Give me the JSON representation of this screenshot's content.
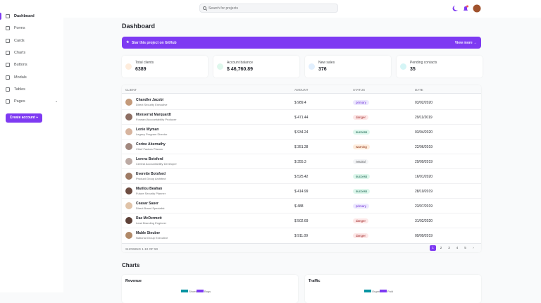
{
  "sidebar": {
    "items": [
      "Dashboard",
      "Forms",
      "Cards",
      "Charts",
      "Buttons",
      "Modals",
      "Tables",
      "Pages"
    ],
    "button": "Create account +"
  },
  "header": {
    "search": "Search for projects"
  },
  "title": "Dashboard",
  "banner": {
    "text": "Star this project on GitHub",
    "link": "View more →"
  },
  "cards": [
    {
      "label": "Total clients",
      "value": "6389"
    },
    {
      "label": "Account balance",
      "value": "$ 46,760.89"
    },
    {
      "label": "New sales",
      "value": "376"
    },
    {
      "label": "Pending contacts",
      "value": "35"
    }
  ],
  "table": {
    "columns": [
      "CLIENT",
      "AMOUNT",
      "STATUS",
      "DATE"
    ],
    "rows": [
      [
        "Chandler Jacobi",
        "Direct Security Executive",
        "$ 989.4",
        "primary",
        "03/02/2020"
      ],
      [
        "Monserrat Marquardt",
        "Forward Accountability Producer",
        "$ 471.44",
        "danger",
        "29/11/2019"
      ],
      [
        "Lonie Wyman",
        "Legacy Program Director",
        "$ 934.24",
        "success",
        "03/04/2020"
      ],
      [
        "Corine Abernathy",
        "Chief Factors Planner",
        "$ 351.28",
        "warning",
        "22/06/2019"
      ],
      [
        "Lorenz Botsford",
        "Central Accountability Developer",
        "$ 355.3",
        "neutral",
        "29/09/2019"
      ],
      [
        "Everette Botsford",
        "Product Group Architect",
        "$ 525.42",
        "success",
        "16/01/2020"
      ],
      [
        "Marilou Beahan",
        "Future Security Planner",
        "$ 414.99",
        "success",
        "28/10/2019"
      ],
      [
        "Ceasar Sauer",
        "Direct Brand Specialist",
        "$ 488",
        "primary",
        "23/07/2019"
      ],
      [
        "Rae McDermott",
        "Lead Branding Engineer",
        "$ 502.69",
        "danger",
        "31/02/2020"
      ],
      [
        "Mable Steuber",
        "National Group Executive",
        "$ 911.09",
        "danger",
        "09/09/2019"
      ]
    ],
    "footer": "SHOWING 1-10 OF 50",
    "pages": [
      "1",
      "2",
      "3",
      "4",
      "5",
      "›"
    ]
  },
  "charts": {
    "title": "Charts",
    "items": [
      {
        "title": "Revenue",
        "legend": [
          "Shoes",
          "Bags"
        ]
      },
      {
        "title": "Traffic",
        "legend": [
          "Organic",
          "Paid"
        ]
      }
    ]
  }
}
